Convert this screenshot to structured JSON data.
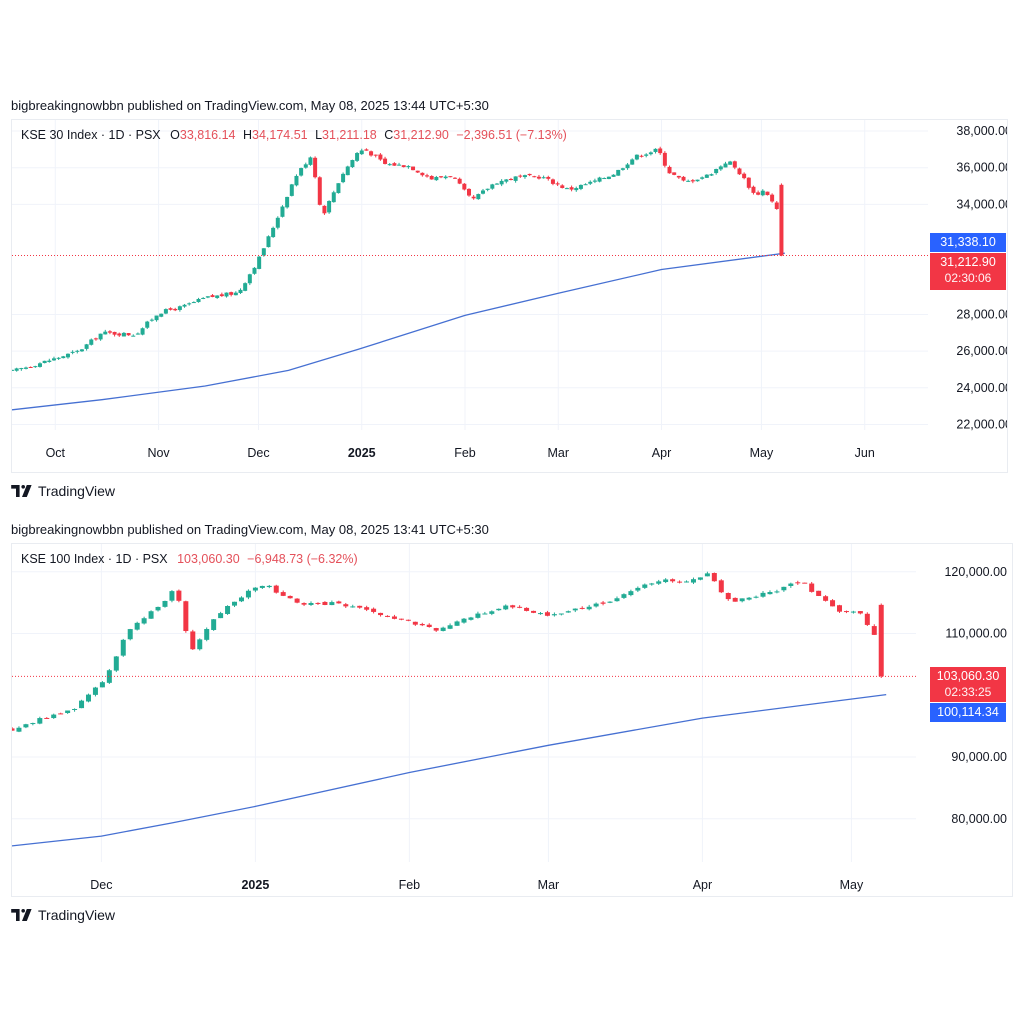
{
  "colors": {
    "up": "#22ab94",
    "down": "#f23645",
    "ma": "#4670d2",
    "grid": "#f0f3fa",
    "tag_blue": "#2962ff",
    "tag_red": "#f23645",
    "axis_text": "#131722",
    "dotted": "#f23645"
  },
  "brand": {
    "name": "TradingView",
    "logo_icon": "tradingview-logo-icon"
  },
  "chart_data": [
    {
      "type": "candlestick",
      "published": "bigbreakingnowbbn published on TradingView.com, May 08, 2025 13:44 UTC+5:30",
      "legend": {
        "symbol": "KSE 30 Index · 1D · PSX",
        "o_label": "O",
        "o_value": "33,816.14",
        "h_label": "H",
        "h_value": "34,174.51",
        "l_label": "L",
        "l_value": "31,211.18",
        "c_label": "C",
        "c_value": "31,212.90",
        "change": "−2,396.51 (−7.13%)"
      },
      "x_axis": {
        "labels": [
          {
            "text": "Oct",
            "date": "2024-10-01",
            "bold": false
          },
          {
            "text": "Nov",
            "date": "2024-11-01",
            "bold": false
          },
          {
            "text": "Dec",
            "date": "2024-12-01",
            "bold": false
          },
          {
            "text": "2025",
            "date": "2025-01-01",
            "bold": true
          },
          {
            "text": "Feb",
            "date": "2025-02-01",
            "bold": false
          },
          {
            "text": "Mar",
            "date": "2025-03-01",
            "bold": false
          },
          {
            "text": "Apr",
            "date": "2025-04-01",
            "bold": false
          },
          {
            "text": "May",
            "date": "2025-05-01",
            "bold": false
          },
          {
            "text": "Jun",
            "date": "2025-06-01",
            "bold": false
          }
        ],
        "range": [
          "2024-09-18",
          "2025-06-20"
        ]
      },
      "y_axis": {
        "ticks": [
          "22,000.00",
          "24,000.00",
          "26,000.00",
          "28,000.00",
          "34,000.00",
          "36,000.00",
          "38,000.00"
        ],
        "tick_values": [
          22000,
          24000,
          26000,
          28000,
          34000,
          36000,
          38000
        ],
        "range": [
          21700,
          38600
        ]
      },
      "last_price": {
        "value": 31212.9,
        "label": "31,212.90",
        "countdown": "02:30:06"
      },
      "ma_value": {
        "value": 31338.1,
        "label": "31,338.10"
      },
      "ma_series": [
        {
          "date": "2024-09-18",
          "value": 22800
        },
        {
          "date": "2024-10-15",
          "value": 23350
        },
        {
          "date": "2024-11-15",
          "value": 24100
        },
        {
          "date": "2024-12-10",
          "value": 24950
        },
        {
          "date": "2024-12-31",
          "value": 26100
        },
        {
          "date": "2025-02-01",
          "value": 27950
        },
        {
          "date": "2025-03-01",
          "value": 29150
        },
        {
          "date": "2025-04-01",
          "value": 30450
        },
        {
          "date": "2025-05-08",
          "value": 31338
        }
      ],
      "close_series": [
        {
          "date": "2024-09-18",
          "value": 24900
        },
        {
          "date": "2024-10-01",
          "value": 25600
        },
        {
          "date": "2024-10-08",
          "value": 26000
        },
        {
          "date": "2024-10-15",
          "value": 27000
        },
        {
          "date": "2024-10-25",
          "value": 26900
        },
        {
          "date": "2024-11-01",
          "value": 28100
        },
        {
          "date": "2024-11-08",
          "value": 28400
        },
        {
          "date": "2024-11-15",
          "value": 28900
        },
        {
          "date": "2024-11-25",
          "value": 29200
        },
        {
          "date": "2024-12-01",
          "value": 31000
        },
        {
          "date": "2024-12-06",
          "value": 33000
        },
        {
          "date": "2024-12-12",
          "value": 35500
        },
        {
          "date": "2024-12-17",
          "value": 36700
        },
        {
          "date": "2024-12-20",
          "value": 33300
        },
        {
          "date": "2024-12-26",
          "value": 35600
        },
        {
          "date": "2024-12-31",
          "value": 36900
        },
        {
          "date": "2025-01-02",
          "value": 37000
        },
        {
          "date": "2025-01-08",
          "value": 36200
        },
        {
          "date": "2025-01-15",
          "value": 36100
        },
        {
          "date": "2025-01-22",
          "value": 35400
        },
        {
          "date": "2025-01-28",
          "value": 35600
        },
        {
          "date": "2025-02-03",
          "value": 34200
        },
        {
          "date": "2025-02-10",
          "value": 35200
        },
        {
          "date": "2025-02-17",
          "value": 35500
        },
        {
          "date": "2025-02-24",
          "value": 35500
        },
        {
          "date": "2025-03-04",
          "value": 34800
        },
        {
          "date": "2025-03-11",
          "value": 35200
        },
        {
          "date": "2025-03-18",
          "value": 35700
        },
        {
          "date": "2025-03-24",
          "value": 36600
        },
        {
          "date": "2025-03-31",
          "value": 37000
        },
        {
          "date": "2025-04-03",
          "value": 35800
        },
        {
          "date": "2025-04-08",
          "value": 35200
        },
        {
          "date": "2025-04-15",
          "value": 35600
        },
        {
          "date": "2025-04-21",
          "value": 36400
        },
        {
          "date": "2025-04-25",
          "value": 35600
        },
        {
          "date": "2025-04-29",
          "value": 34500
        },
        {
          "date": "2025-05-02",
          "value": 34800
        },
        {
          "date": "2025-05-06",
          "value": 33600
        },
        {
          "date": "2025-05-08",
          "value": 31213
        }
      ]
    },
    {
      "type": "candlestick",
      "published": "bigbreakingnowbbn published on TradingView.com, May 08, 2025 13:41 UTC+5:30",
      "legend": {
        "symbol": "KSE 100 Index · 1D · PSX",
        "c_value": "103,060.30",
        "change": "−6,948.73 (−6.32%)"
      },
      "x_axis": {
        "labels": [
          {
            "text": "Dec",
            "date": "2024-12-01",
            "bold": false
          },
          {
            "text": "2025",
            "date": "2025-01-01",
            "bold": true
          },
          {
            "text": "Feb",
            "date": "2025-02-01",
            "bold": false
          },
          {
            "text": "Mar",
            "date": "2025-03-01",
            "bold": false
          },
          {
            "text": "Apr",
            "date": "2025-04-01",
            "bold": false
          },
          {
            "text": "May",
            "date": "2025-05-01",
            "bold": false
          }
        ],
        "range": [
          "2024-11-13",
          "2025-05-14"
        ]
      },
      "y_axis": {
        "ticks": [
          "80,000.00",
          "90,000.00",
          "110,000.00",
          "120,000.00"
        ],
        "tick_values": [
          80000,
          90000,
          110000,
          120000
        ],
        "range": [
          73000,
          124500
        ]
      },
      "last_price": {
        "value": 103060.3,
        "label": "103,060.30",
        "countdown": "02:33:25"
      },
      "ma_value": {
        "value": 100114.34,
        "label": "100,114.34"
      },
      "ma_series": [
        {
          "date": "2024-11-13",
          "value": 75600
        },
        {
          "date": "2024-12-01",
          "value": 77200
        },
        {
          "date": "2024-12-15",
          "value": 79300
        },
        {
          "date": "2025-01-01",
          "value": 82000
        },
        {
          "date": "2025-02-01",
          "value": 87500
        },
        {
          "date": "2025-03-01",
          "value": 91900
        },
        {
          "date": "2025-04-01",
          "value": 96300
        },
        {
          "date": "2025-05-08",
          "value": 100114
        }
      ],
      "close_series": [
        {
          "date": "2024-11-13",
          "value": 94500
        },
        {
          "date": "2024-11-20",
          "value": 96500
        },
        {
          "date": "2024-11-25",
          "value": 97500
        },
        {
          "date": "2024-12-02",
          "value": 103000
        },
        {
          "date": "2024-12-06",
          "value": 110000
        },
        {
          "date": "2024-12-12",
          "value": 114000
        },
        {
          "date": "2024-12-16",
          "value": 117500
        },
        {
          "date": "2024-12-19",
          "value": 107000
        },
        {
          "date": "2024-12-24",
          "value": 113000
        },
        {
          "date": "2024-12-30",
          "value": 116500
        },
        {
          "date": "2025-01-03",
          "value": 118000
        },
        {
          "date": "2025-01-10",
          "value": 114500
        },
        {
          "date": "2025-01-17",
          "value": 115000
        },
        {
          "date": "2025-01-24",
          "value": 113500
        },
        {
          "date": "2025-01-31",
          "value": 112000
        },
        {
          "date": "2025-02-07",
          "value": 110500
        },
        {
          "date": "2025-02-14",
          "value": 113000
        },
        {
          "date": "2025-02-21",
          "value": 114500
        },
        {
          "date": "2025-03-01",
          "value": 113000
        },
        {
          "date": "2025-03-10",
          "value": 114500
        },
        {
          "date": "2025-03-17",
          "value": 116500
        },
        {
          "date": "2025-03-24",
          "value": 119000
        },
        {
          "date": "2025-03-28",
          "value": 118000
        },
        {
          "date": "2025-04-02",
          "value": 119500
        },
        {
          "date": "2025-04-07",
          "value": 115000
        },
        {
          "date": "2025-04-14",
          "value": 116500
        },
        {
          "date": "2025-04-21",
          "value": 118500
        },
        {
          "date": "2025-04-25",
          "value": 115500
        },
        {
          "date": "2025-04-29",
          "value": 113000
        },
        {
          "date": "2025-05-02",
          "value": 114000
        },
        {
          "date": "2025-05-06",
          "value": 109500
        },
        {
          "date": "2025-05-08",
          "value": 103060
        }
      ]
    }
  ]
}
